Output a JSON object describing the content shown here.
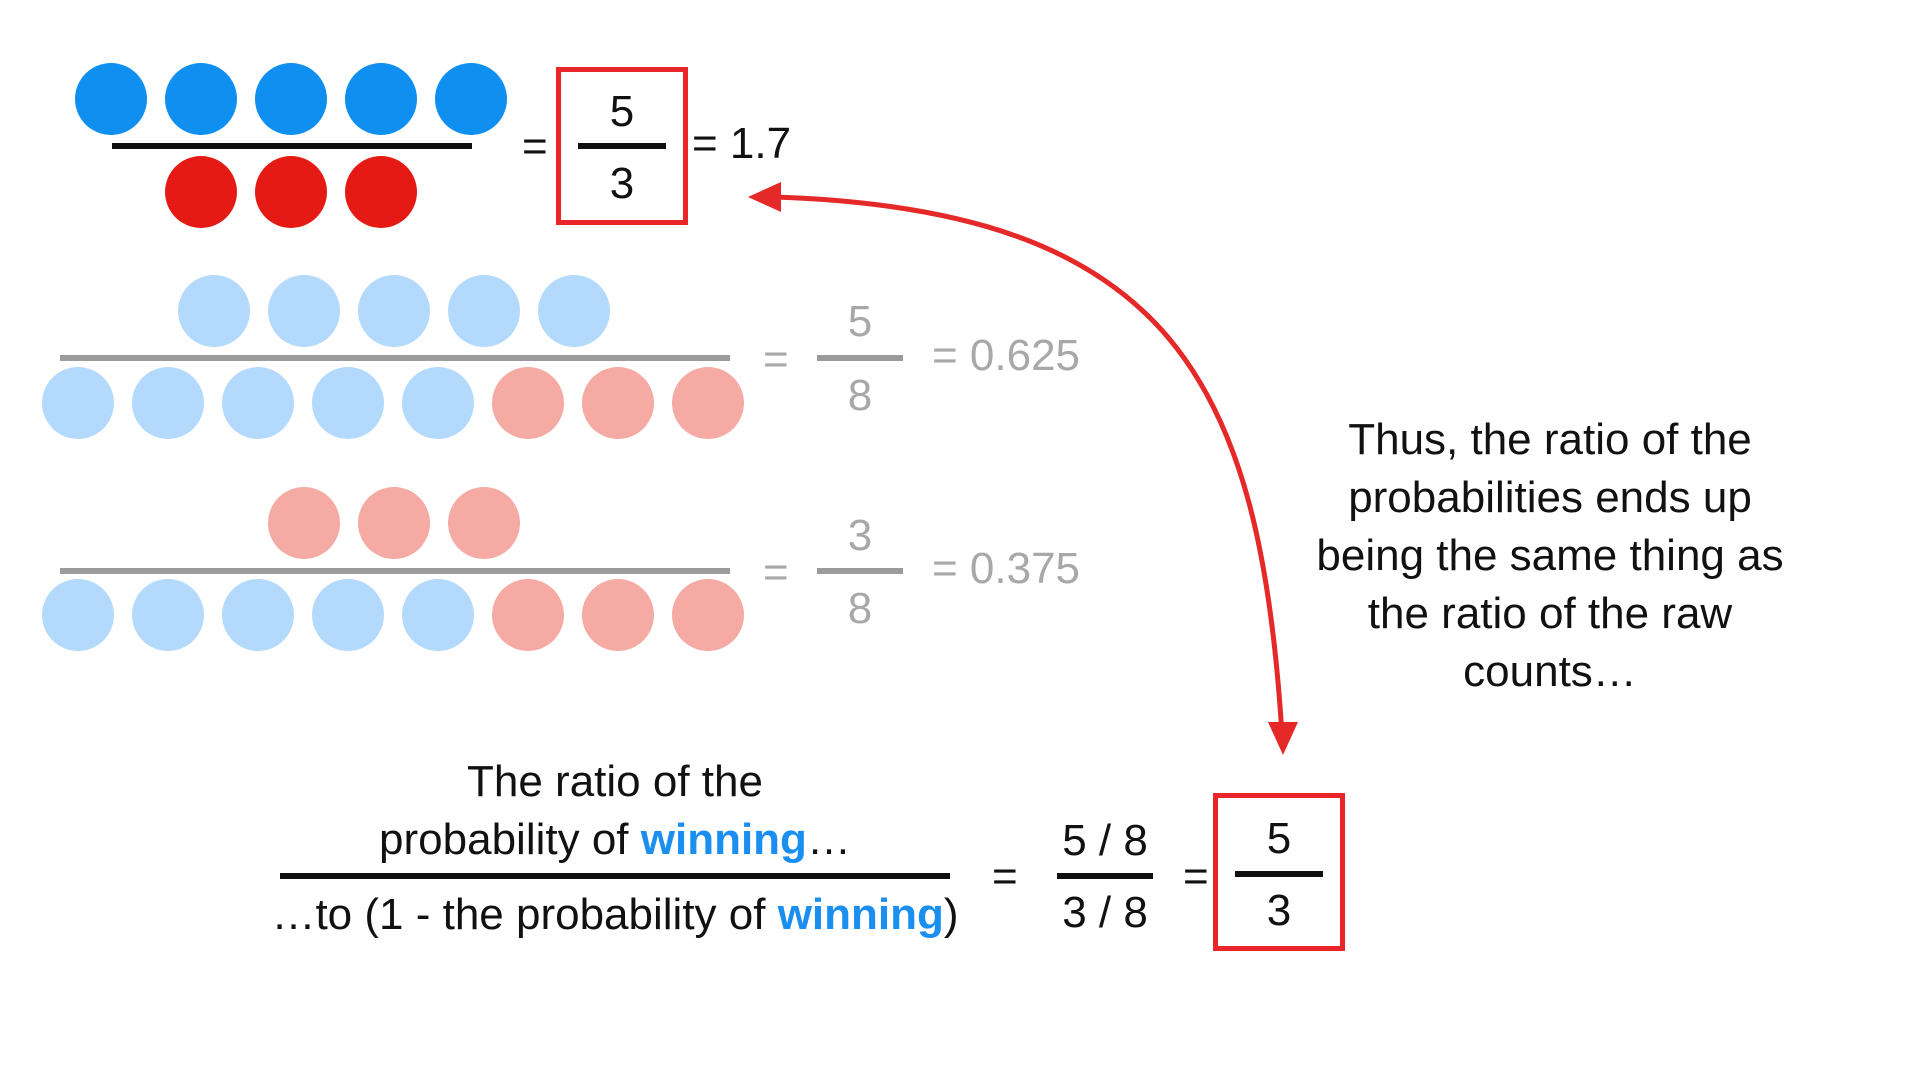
{
  "colors": {
    "blue": "#0f8ff0",
    "red": "#e61a14",
    "light_blue": "#b3d9fc",
    "light_red": "#f5aaa3",
    "arrow": "#e52929"
  },
  "row1": {
    "numerator_circles": [
      "blue",
      "blue",
      "blue",
      "blue",
      "blue"
    ],
    "denominator_circles": [
      "red",
      "red",
      "red"
    ],
    "equals": "=",
    "frac_num": "5",
    "frac_den": "3",
    "result": "= 1.7"
  },
  "row2": {
    "numerator_circles": [
      "light_blue",
      "light_blue",
      "light_blue",
      "light_blue",
      "light_blue"
    ],
    "denominator_circles": [
      "light_blue",
      "light_blue",
      "light_blue",
      "light_blue",
      "light_blue",
      "light_red",
      "light_red",
      "light_red"
    ],
    "equals": "=",
    "frac_num": "5",
    "frac_den": "8",
    "result": "= 0.625"
  },
  "row3": {
    "numerator_circles": [
      "light_red",
      "light_red",
      "light_red"
    ],
    "denominator_circles": [
      "light_blue",
      "light_blue",
      "light_blue",
      "light_blue",
      "light_blue",
      "light_red",
      "light_red",
      "light_red"
    ],
    "equals": "=",
    "frac_num": "3",
    "frac_den": "8",
    "result": "= 0.375"
  },
  "note": {
    "line1": "Thus, the ratio of the",
    "line2": "probabilities ends up",
    "line3": "being the same thing as",
    "line4": "the ratio of the raw",
    "line5": "counts…"
  },
  "bottom": {
    "num_line1": "The ratio of the",
    "num_line2_pre": "probability of ",
    "num_line2_word": "winning",
    "num_line2_post": "…",
    "den_pre": "…to (1 - the probability of ",
    "den_word": "winning",
    "den_post": ")",
    "equals1": "=",
    "frac_num": "5 / 8",
    "frac_den": "3 / 8",
    "equals2": "=",
    "box_num": "5",
    "box_den": "3"
  }
}
